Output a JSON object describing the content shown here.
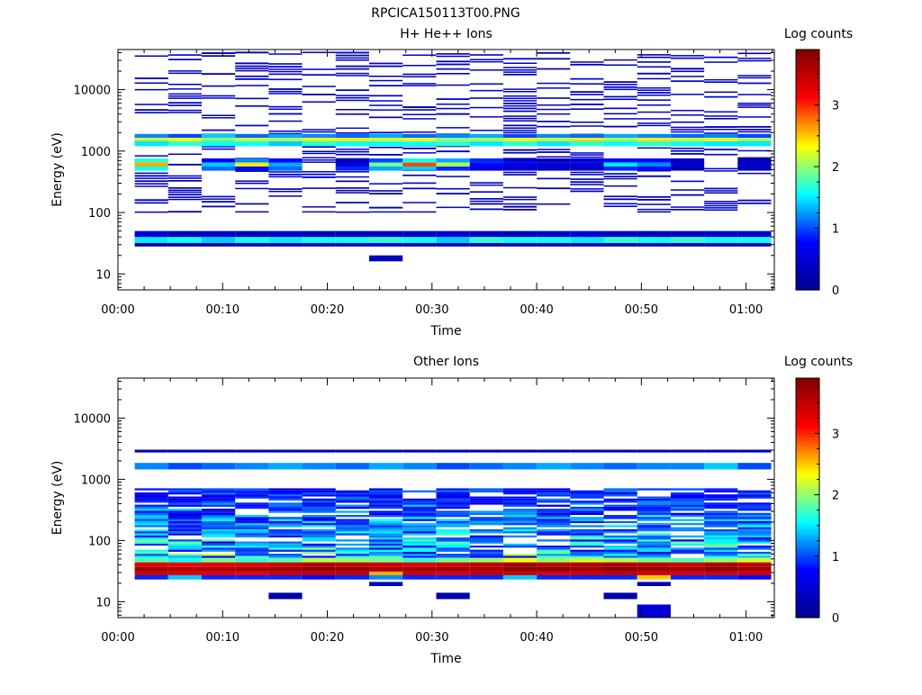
{
  "page_title": "RPCICA150113T00.PNG",
  "colors": {
    "colormap": [
      "#00008f",
      "#0000ff",
      "#00ffff",
      "#ffff00",
      "#ff0000",
      "#800000"
    ],
    "axis": "#000000",
    "background": "#ffffff"
  },
  "chart_data": [
    {
      "type": "heatmap",
      "title": "H+ He++ Ions",
      "xlabel": "Time",
      "ylabel": "Energy (eV)",
      "colorbar_label": "Log counts",
      "xlim_minutes": [
        0,
        62.7
      ],
      "x_tick_labels": [
        "00:00",
        "00:10",
        "00:20",
        "00:30",
        "00:40",
        "00:50",
        "01:00"
      ],
      "x_tick_minutes": [
        0,
        10,
        20,
        30,
        40,
        50,
        60
      ],
      "y_scale": "log",
      "ylim": [
        5.5,
        45000
      ],
      "y_tick_labels": [
        "10",
        "100",
        "1000",
        "10000"
      ],
      "y_tick_values": [
        10,
        100,
        1000,
        10000
      ],
      "colorbar_range": [
        0,
        3.9
      ],
      "colorbar_tick_labels": [
        "0",
        "1",
        "2",
        "3"
      ],
      "colorbar_tick_values": [
        0,
        1,
        2,
        3
      ],
      "time_bin_minutes": 3.2,
      "time_start_minutes": 1.6,
      "n_time_bins": 19,
      "bands": [
        {
          "energy": [
            28,
            32
          ],
          "levels": [
            0.2,
            0.2,
            0.2,
            0.3,
            0.3,
            0.4,
            0.4,
            0.5,
            0.3,
            0.3,
            0.3,
            0.3,
            0.3,
            0.3,
            0.3,
            0.4,
            0.3,
            0.3,
            0.3
          ]
        },
        {
          "energy": [
            32,
            40
          ],
          "levels": [
            1.5,
            1.6,
            1.4,
            1.6,
            1.5,
            1.6,
            1.6,
            1.7,
            1.6,
            1.4,
            1.7,
            1.6,
            1.6,
            1.5,
            1.7,
            1.6,
            1.7,
            1.6,
            1.6
          ]
        },
        {
          "energy": [
            40,
            50
          ],
          "levels": [
            0.5,
            0.3,
            0.4,
            0.3,
            0.4,
            0.3,
            0.3,
            0.4,
            0.4,
            0.5,
            0.4,
            0.3,
            0.4,
            0.5,
            0.4,
            0.3,
            0.4,
            0.4,
            0.4
          ]
        },
        {
          "energy": [
            1200,
            1450
          ],
          "levels": [
            1.5,
            1.7,
            1.6,
            1.6,
            1.4,
            1.7,
            1.6,
            1.6,
            1.6,
            1.7,
            1.5,
            1.7,
            1.5,
            1.7,
            1.6,
            1.7,
            1.6,
            1.5,
            1.5
          ]
        },
        {
          "energy": [
            1450,
            1650
          ],
          "levels": [
            2.2,
            2.3,
            2.0,
            2.2,
            2.1,
            2.3,
            2.4,
            2.2,
            2.3,
            2.0,
            2.1,
            2.3,
            2.2,
            2.4,
            2.1,
            2.4,
            2.2,
            2.3,
            2.1
          ]
        },
        {
          "energy": [
            1650,
            1900
          ],
          "levels": [
            1.2,
            1.0,
            1.4,
            1.1,
            1.3,
            1.2,
            1.1,
            1.3,
            1.1,
            1.2,
            1.3,
            1.0,
            1.2,
            1.1,
            1.3,
            1.2,
            1.1,
            1.2,
            1.0
          ]
        },
        {
          "energy": [
            480,
            560
          ],
          "levels": [
            1.6,
            0,
            1.1,
            0.8,
            1.1,
            0,
            0.9,
            1.3,
            1.4,
            0.9,
            0.6,
            0.5,
            0.4,
            0.4,
            0.9,
            0.8,
            0.3,
            0,
            0.4
          ]
        },
        {
          "energy": [
            560,
            650
          ],
          "levels": [
            2.6,
            0,
            1.4,
            2.4,
            1.3,
            0,
            0.6,
            1.9,
            2.9,
            2.1,
            0.8,
            0.6,
            0.5,
            0.5,
            1.5,
            1.2,
            0.4,
            0,
            0.4
          ]
        },
        {
          "energy": [
            650,
            760
          ],
          "levels": [
            1.7,
            0,
            0.7,
            1.2,
            0.8,
            0,
            0.3,
            1.0,
            1.6,
            1.3,
            0.9,
            0.5,
            0.3,
            0.5,
            0.8,
            0.8,
            0.3,
            0,
            0.3
          ]
        },
        {
          "energy": [
            16,
            20
          ],
          "levels": [
            0,
            0,
            0,
            0,
            0,
            0,
            0,
            0.3,
            0,
            0,
            0,
            0,
            0,
            0,
            0,
            0,
            0,
            0,
            0
          ]
        }
      ],
      "sparse": {
        "emin": 100,
        "emax": 40000,
        "level_range": [
          0.2,
          0.6
        ],
        "density": 0.36
      }
    },
    {
      "type": "heatmap",
      "title": "Other Ions",
      "xlabel": "Time",
      "ylabel": "Energy (eV)",
      "colorbar_label": "Log counts",
      "xlim_minutes": [
        0,
        62.7
      ],
      "x_tick_labels": [
        "00:00",
        "00:10",
        "00:20",
        "00:30",
        "00:40",
        "00:50",
        "01:00"
      ],
      "x_tick_minutes": [
        0,
        10,
        20,
        30,
        40,
        50,
        60
      ],
      "y_scale": "log",
      "ylim": [
        5.5,
        45000
      ],
      "y_tick_labels": [
        "10",
        "100",
        "1000",
        "10000"
      ],
      "y_tick_values": [
        10,
        100,
        1000,
        10000
      ],
      "colorbar_range": [
        0,
        3.9
      ],
      "colorbar_tick_labels": [
        "0",
        "1",
        "2",
        "3"
      ],
      "colorbar_tick_values": [
        0,
        1,
        2,
        3
      ],
      "time_bin_minutes": 3.2,
      "time_start_minutes": 1.6,
      "n_time_bins": 19,
      "bands": [
        {
          "energy": [
            23,
            27
          ],
          "levels": [
            0.9,
            1.4,
            0.9,
            0.9,
            0.9,
            0.8,
            0.9,
            1.2,
            0.9,
            0.9,
            0.9,
            1.4,
            0.9,
            0.9,
            0.9,
            2.5,
            0.9,
            0.9,
            0.8
          ]
        },
        {
          "energy": [
            27,
            31
          ],
          "levels": [
            3.4,
            3.3,
            3.3,
            3.2,
            3.4,
            3.5,
            3.5,
            2.6,
            3.4,
            3.3,
            3.5,
            3.4,
            3.3,
            3.4,
            3.5,
            3.4,
            3.3,
            3.4,
            3.4
          ]
        },
        {
          "energy": [
            31,
            37
          ],
          "levels": [
            3.7,
            3.6,
            3.6,
            3.7,
            3.7,
            3.8,
            3.7,
            3.6,
            3.7,
            3.7,
            3.6,
            3.8,
            3.8,
            3.7,
            3.8,
            3.7,
            3.7,
            3.8,
            3.7
          ]
        },
        {
          "energy": [
            37,
            44
          ],
          "levels": [
            3.3,
            3.2,
            3.3,
            3.3,
            3.4,
            3.6,
            3.5,
            3.4,
            3.3,
            3.4,
            3.5,
            3.7,
            3.5,
            3.6,
            3.6,
            3.5,
            3.4,
            3.6,
            3.5
          ]
        },
        {
          "energy": [
            44,
            52
          ],
          "levels": [
            1.8,
            1.6,
            1.9,
            1.7,
            1.8,
            2.1,
            2.0,
            1.9,
            1.7,
            1.9,
            2.0,
            2.3,
            2.0,
            2.2,
            2.1,
            1.9,
            1.8,
            2.0,
            2.2
          ]
        },
        {
          "energy": [
            1450,
            1850
          ],
          "levels": [
            1.2,
            1.0,
            1.1,
            1.2,
            1.3,
            1.2,
            1.1,
            1.3,
            1.2,
            1.0,
            1.1,
            1.2,
            1.3,
            1.2,
            1.1,
            1.2,
            1.2,
            1.4,
            1.0
          ]
        },
        {
          "energy": [
            2750,
            3050
          ],
          "levels": [
            0.3,
            0.3,
            0.3,
            0.3,
            0.3,
            0.3,
            0.3,
            0.3,
            0.3,
            0.3,
            0.3,
            0.3,
            0.3,
            0.3,
            0.3,
            0.3,
            0.3,
            0.3,
            0.3
          ]
        },
        {
          "energy": [
            11,
            14
          ],
          "levels": [
            0,
            0,
            0,
            0,
            0.2,
            0,
            0,
            0,
            0,
            0.2,
            0,
            0,
            0,
            0,
            0.2,
            0,
            0,
            0,
            0
          ]
        },
        {
          "energy": [
            5.5,
            9
          ],
          "levels": [
            0,
            0,
            0,
            0,
            0,
            0,
            0,
            0,
            0,
            0,
            0,
            0,
            0,
            0,
            0,
            0.5,
            0,
            0,
            0
          ]
        },
        {
          "energy": [
            18,
            21
          ],
          "levels": [
            0,
            0,
            0,
            0,
            0,
            0,
            0,
            0.4,
            0,
            0,
            0,
            0,
            0,
            0,
            0,
            0.3,
            0,
            0,
            0
          ]
        }
      ],
      "dense": {
        "emin": 52,
        "emax": 700,
        "level_range": [
          0.2,
          2.0
        ],
        "density": 0.82
      }
    }
  ]
}
